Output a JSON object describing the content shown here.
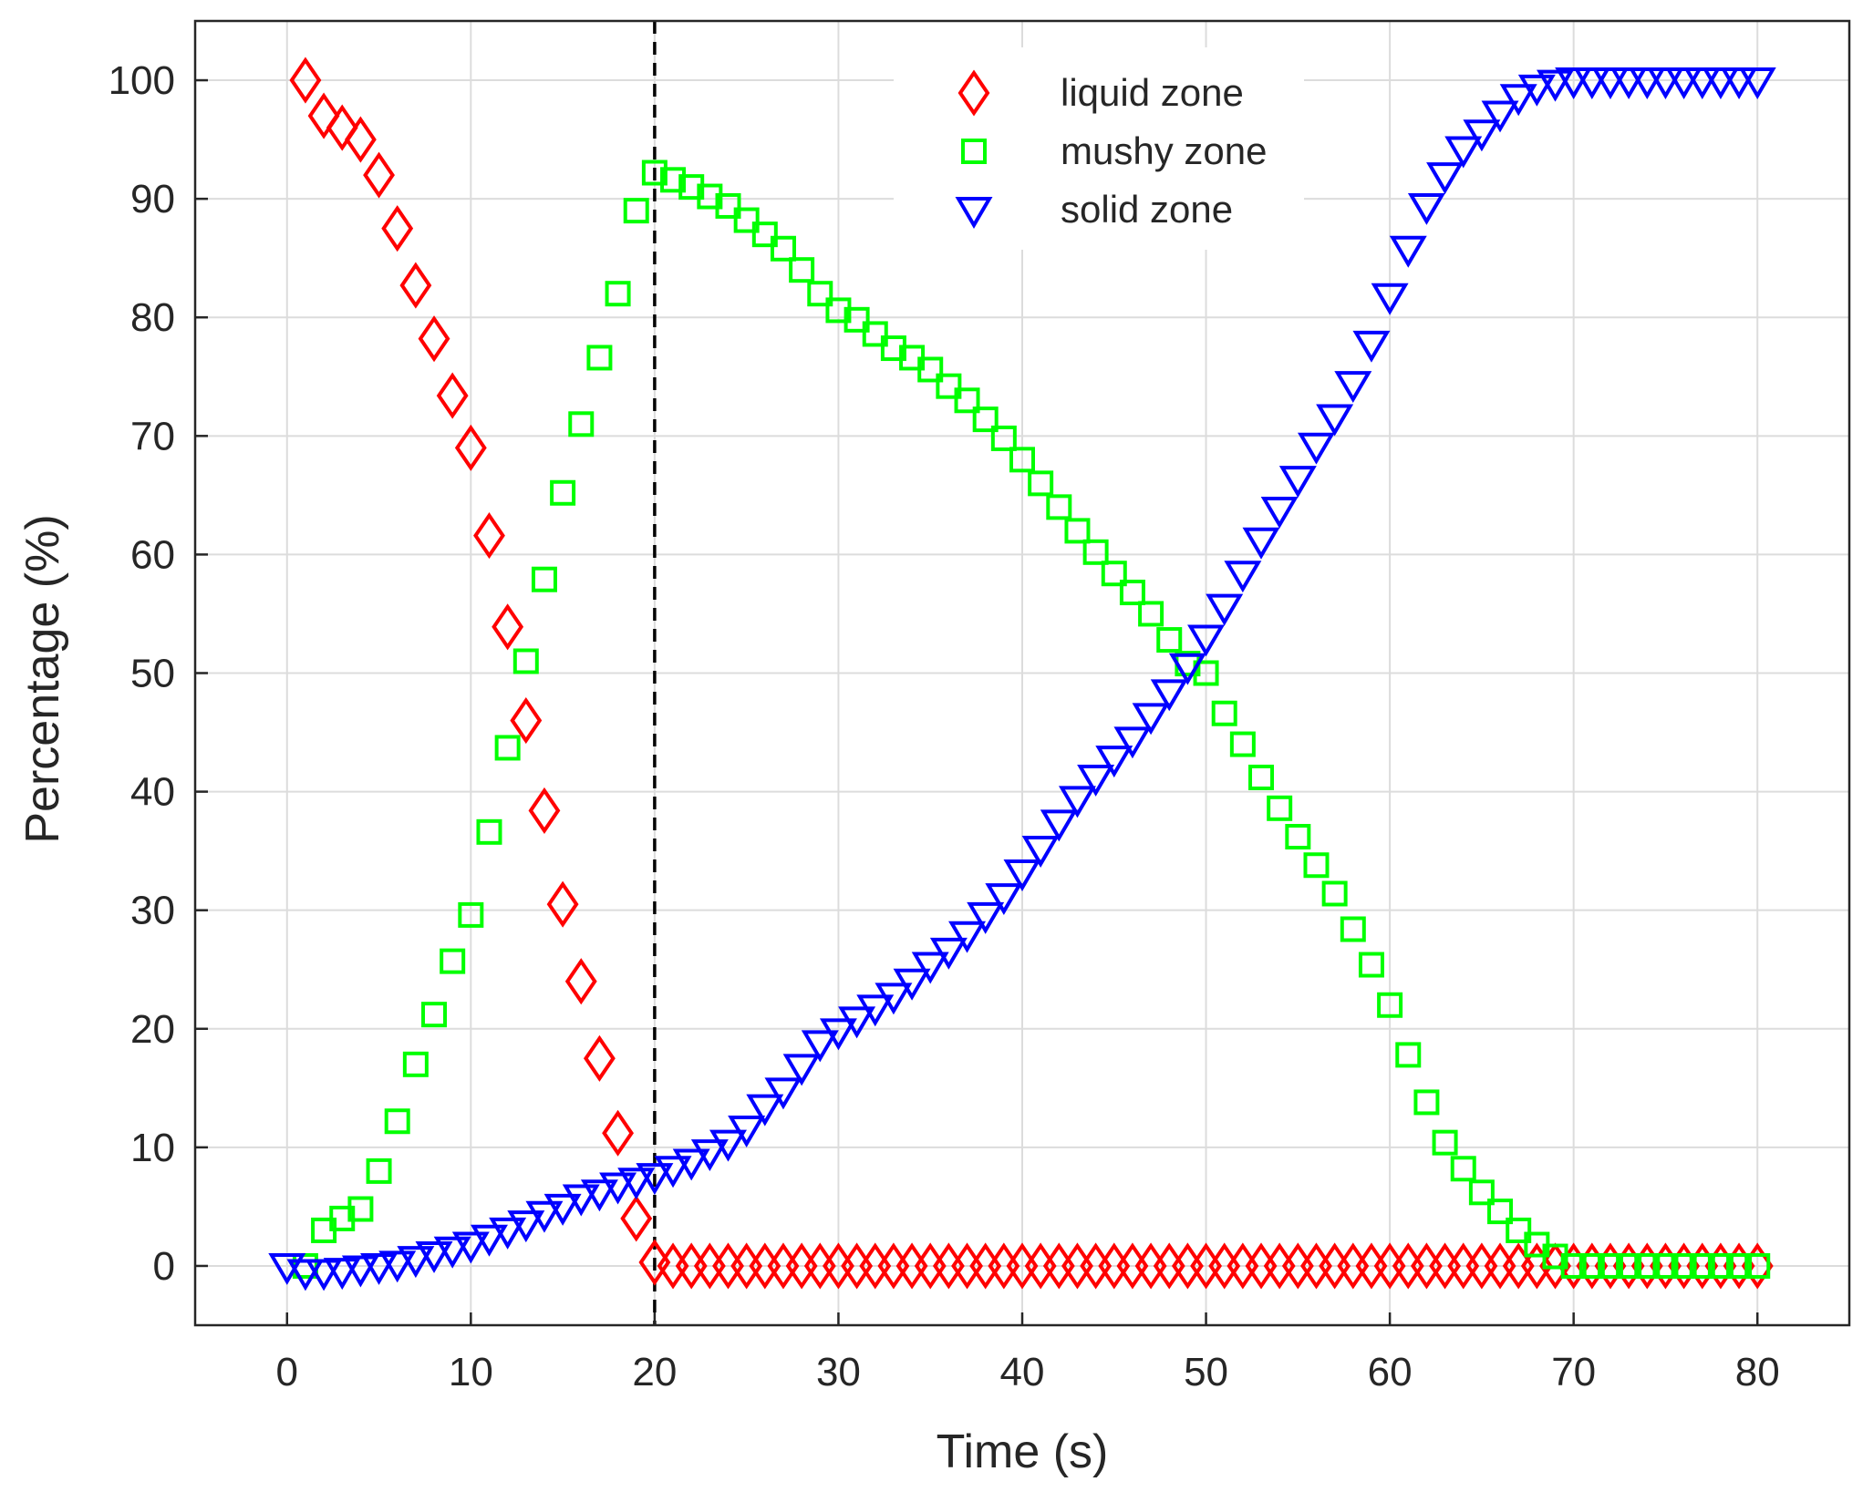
{
  "chart_data": {
    "type": "scatter",
    "title": "",
    "xlabel": "Time (s)",
    "ylabel": "Percentage (%)",
    "xlim": [
      -5,
      85
    ],
    "ylim": [
      -5,
      105
    ],
    "xticks": [
      0,
      10,
      20,
      30,
      40,
      50,
      60,
      70,
      80
    ],
    "yticks": [
      0,
      10,
      20,
      30,
      40,
      50,
      60,
      70,
      80,
      90,
      100
    ],
    "grid": true,
    "legend_position": "top-right",
    "reference_line": {
      "x": 20,
      "style": "dashed",
      "color": "#000000"
    },
    "series": [
      {
        "name": "liquid zone",
        "marker": "diamond",
        "color": "#ff0000",
        "x": [
          1,
          2,
          3,
          4,
          5,
          6,
          7,
          8,
          9,
          10,
          11,
          12,
          13,
          14,
          15,
          16,
          17,
          18,
          19,
          20,
          21,
          22,
          23,
          24,
          25,
          26,
          27,
          28,
          29,
          30,
          31,
          32,
          33,
          34,
          35,
          36,
          37,
          38,
          39,
          40,
          41,
          42,
          43,
          44,
          45,
          46,
          47,
          48,
          49,
          50,
          51,
          52,
          53,
          54,
          55,
          56,
          57,
          58,
          59,
          60,
          61,
          62,
          63,
          64,
          65,
          66,
          67,
          68,
          69,
          70,
          71,
          72,
          73,
          74,
          75,
          76,
          77,
          78,
          79,
          80
        ],
        "y": [
          100,
          97,
          96,
          95,
          92,
          87.5,
          82.7,
          78.2,
          73.4,
          69,
          61.6,
          53.9,
          46,
          38.4,
          30.5,
          24,
          17.5,
          11.2,
          4,
          0.3,
          0,
          0,
          0,
          0,
          0,
          0,
          0,
          0,
          0,
          0,
          0,
          0,
          0,
          0,
          0,
          0,
          0,
          0,
          0,
          0,
          0,
          0,
          0,
          0,
          0,
          0,
          0,
          0,
          0,
          0,
          0,
          0,
          0,
          0,
          0,
          0,
          0,
          0,
          0,
          0,
          0,
          0,
          0,
          0,
          0,
          0,
          0,
          0,
          0,
          0,
          0,
          0,
          0,
          0,
          0,
          0,
          0,
          0,
          0,
          0
        ]
      },
      {
        "name": "mushy zone",
        "marker": "square",
        "color": "#00ff00",
        "x": [
          1,
          2,
          3,
          4,
          5,
          6,
          7,
          8,
          9,
          10,
          11,
          12,
          13,
          14,
          15,
          16,
          17,
          18,
          19,
          20,
          21,
          22,
          23,
          24,
          25,
          26,
          27,
          28,
          29,
          30,
          31,
          32,
          33,
          34,
          35,
          36,
          37,
          38,
          39,
          40,
          41,
          42,
          43,
          44,
          45,
          46,
          47,
          48,
          49,
          50,
          51,
          52,
          53,
          54,
          55,
          56,
          57,
          58,
          59,
          60,
          61,
          62,
          63,
          64,
          65,
          66,
          67,
          68,
          69,
          70,
          71,
          72,
          73,
          74,
          75,
          76,
          77,
          78,
          79,
          80
        ],
        "y": [
          0,
          3,
          4,
          4.8,
          8,
          12.2,
          17,
          21.2,
          25.7,
          29.6,
          36.6,
          43.7,
          51,
          57.9,
          65.2,
          71,
          76.6,
          82,
          89,
          92.2,
          91.6,
          91,
          90.2,
          89.4,
          88.2,
          87,
          85.8,
          84,
          82,
          80.6,
          79.8,
          78.6,
          77.4,
          76.6,
          75.6,
          74.2,
          73,
          71.4,
          69.8,
          68,
          66,
          64,
          62,
          60.2,
          58.4,
          56.8,
          55,
          52.8,
          50.8,
          50,
          46.6,
          44,
          41.2,
          38.6,
          36.2,
          33.8,
          31.4,
          28.4,
          25.4,
          22,
          17.8,
          13.8,
          10.4,
          8.2,
          6.2,
          4.6,
          3,
          1.8,
          0.8,
          0,
          0,
          0,
          0,
          0,
          0,
          0,
          0,
          0,
          0,
          0
        ]
      },
      {
        "name": "solid zone",
        "marker": "triangle-down",
        "color": "#0000ff",
        "x": [
          0,
          1,
          2,
          3,
          4,
          5,
          6,
          7,
          8,
          9,
          10,
          11,
          12,
          13,
          14,
          15,
          16,
          17,
          18,
          19,
          20,
          21,
          22,
          23,
          24,
          25,
          26,
          27,
          28,
          29,
          30,
          31,
          32,
          33,
          34,
          35,
          36,
          37,
          38,
          39,
          40,
          41,
          42,
          43,
          44,
          45,
          46,
          47,
          48,
          49,
          50,
          51,
          52,
          53,
          54,
          55,
          56,
          57,
          58,
          59,
          60,
          61,
          62,
          63,
          64,
          65,
          66,
          67,
          68,
          69,
          70,
          71,
          72,
          73,
          74,
          75,
          76,
          77,
          78,
          79,
          80
        ],
        "y": [
          0,
          -0.5,
          -0.5,
          -0.4,
          -0.2,
          0,
          0.2,
          0.6,
          1,
          1.4,
          1.8,
          2.4,
          3,
          3.6,
          4.4,
          5,
          5.8,
          6.2,
          6.8,
          7.2,
          7.6,
          8.2,
          8.8,
          9.6,
          10.4,
          11.6,
          13.4,
          14.8,
          16.8,
          18.8,
          19.8,
          20.8,
          21.8,
          22.8,
          24,
          25.4,
          26.6,
          28,
          29.6,
          31.2,
          33.2,
          35.2,
          37.4,
          39.4,
          41.2,
          42.8,
          44.4,
          46.4,
          48.4,
          50.6,
          53,
          55.6,
          58.4,
          61.2,
          63.8,
          66.4,
          69.2,
          71.6,
          74.4,
          77.8,
          81.8,
          85.8,
          89.4,
          92,
          94.2,
          95.6,
          97.2,
          98.6,
          99.4,
          99.8,
          100,
          100,
          100,
          100,
          100,
          100,
          100,
          100,
          100,
          100,
          100
        ]
      }
    ]
  }
}
